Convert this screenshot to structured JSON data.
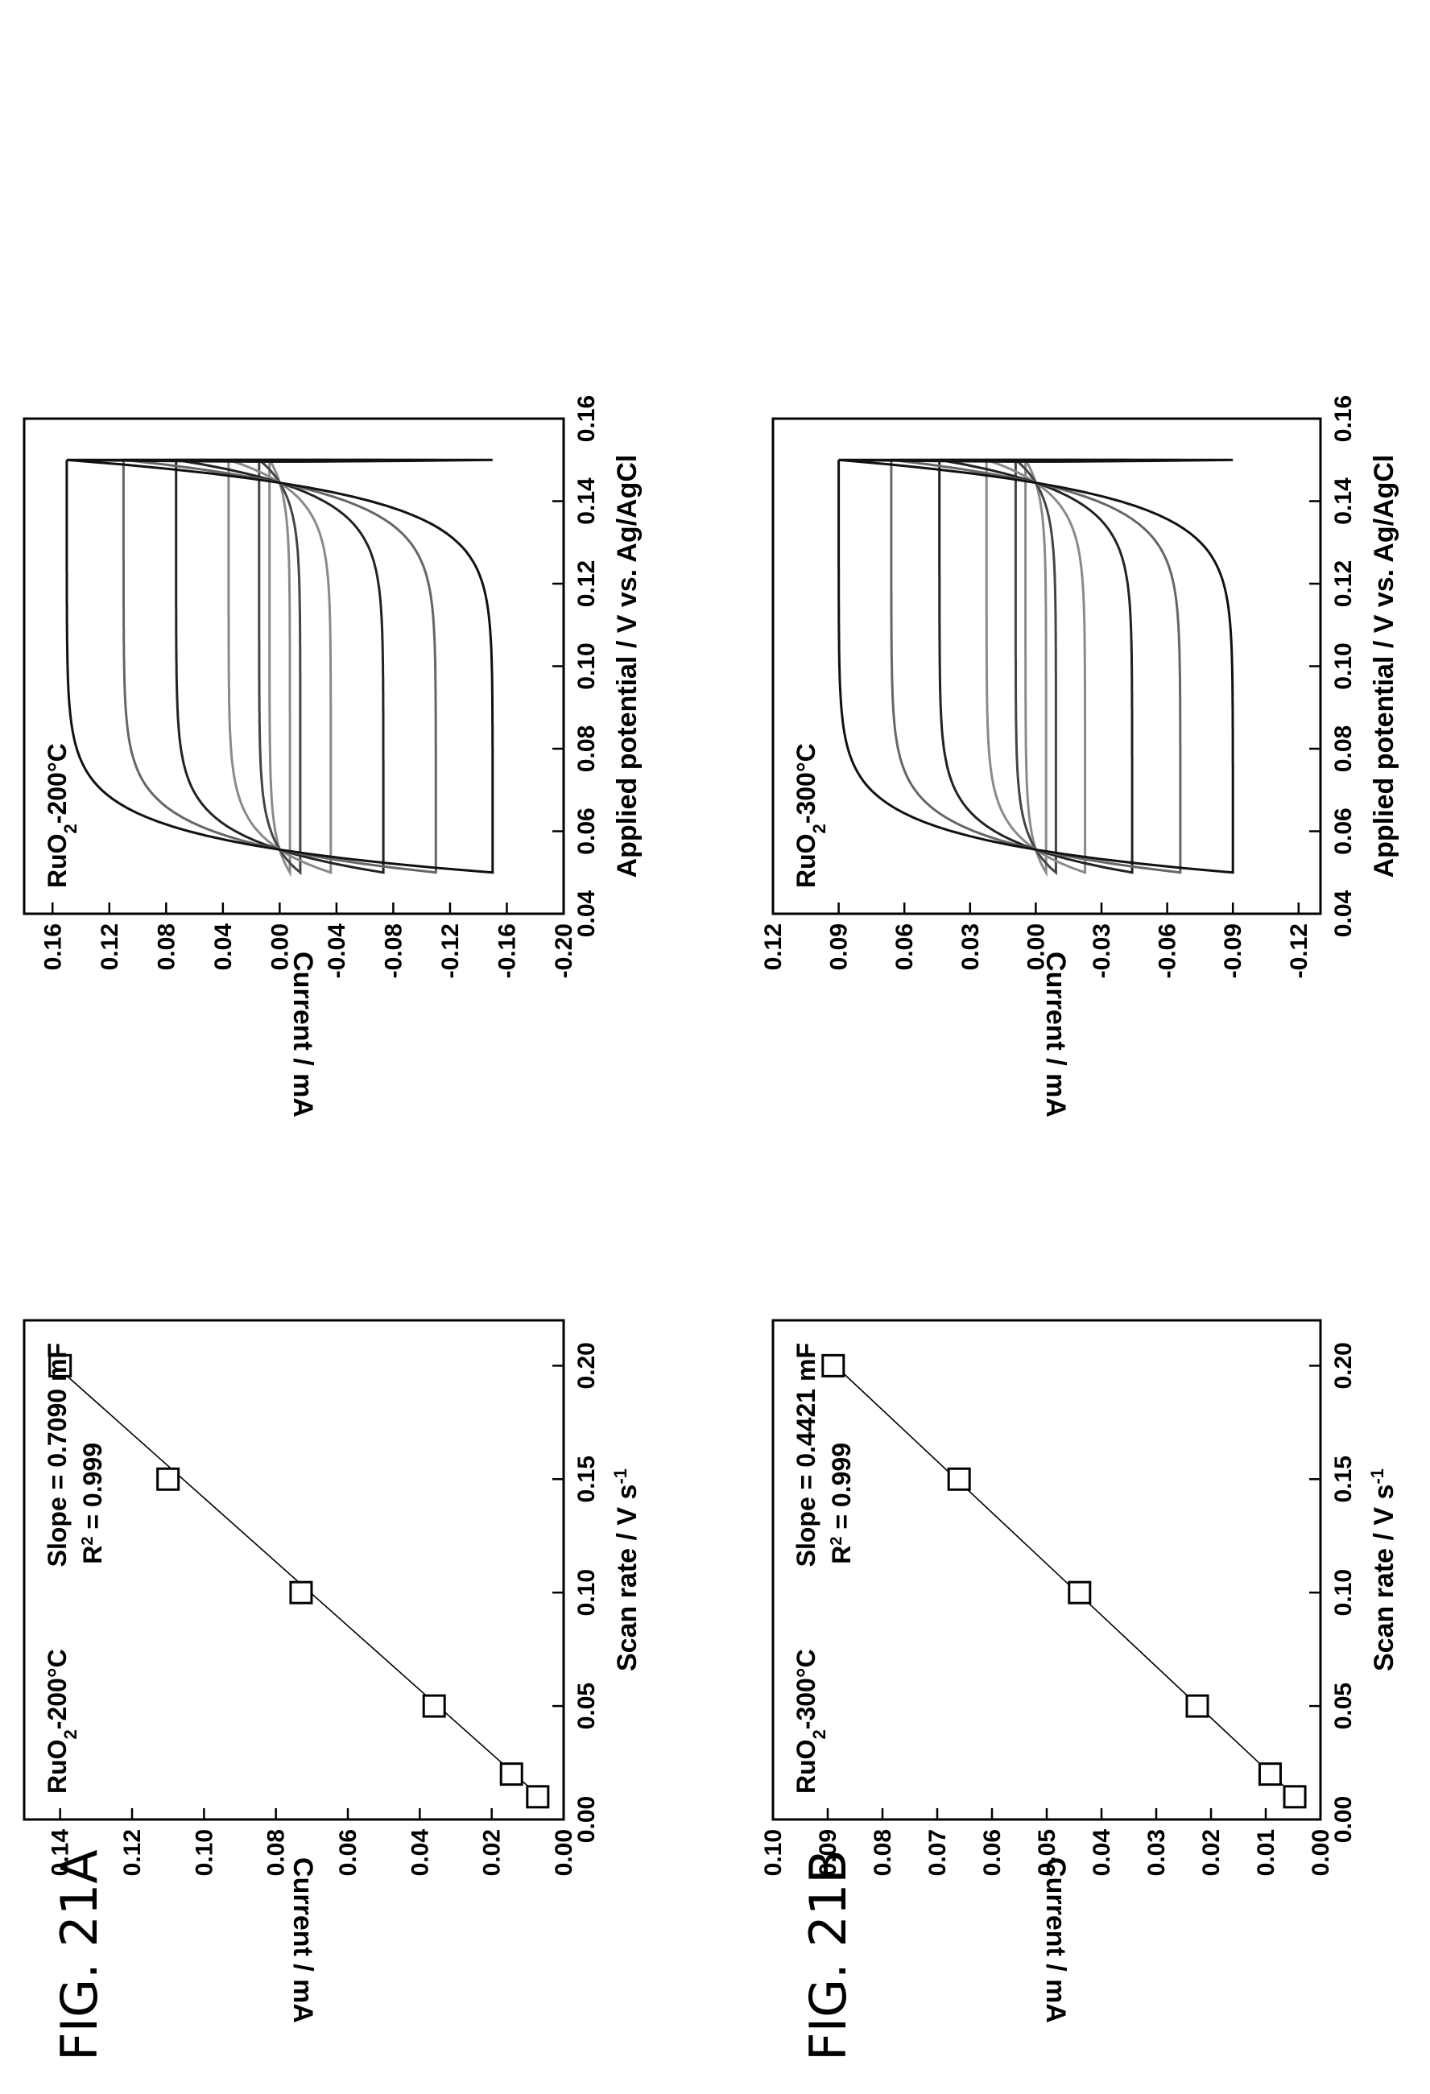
{
  "figures": [
    {
      "id": "21A",
      "label": "FIG. 21A"
    },
    {
      "id": "21B",
      "label": "FIG. 21B"
    }
  ],
  "chart_data": [
    {
      "id": "cv-21a",
      "figure": "21A",
      "type": "line",
      "title": "",
      "xlabel": "Applied potential / V vs. Ag/AgCl",
      "ylabel": "Current / mA",
      "xlim": [
        0.04,
        0.16
      ],
      "ylim": [
        -0.2,
        0.18
      ],
      "xticks": [
        "0.04",
        "0.06",
        "0.08",
        "0.10",
        "0.12",
        "0.14",
        "0.16"
      ],
      "yticks": [
        "0.16",
        "0.12",
        "0.08",
        "0.04",
        "0.00",
        "-0.04",
        "-0.08",
        "-0.12",
        "-0.16",
        "-0.20"
      ],
      "grid": false,
      "annotation": {
        "base": "RuO",
        "sub": "2",
        "rest": "-200°C"
      },
      "curve_shape": {
        "x_start": 0.05,
        "x_end": 0.15
      },
      "series": [
        {
          "scan_rate": 0.01,
          "amplitude": 0.0072,
          "color": "#8a8a8a"
        },
        {
          "scan_rate": 0.02,
          "amplitude": 0.0145,
          "color": "#444444"
        },
        {
          "scan_rate": 0.05,
          "amplitude": 0.036,
          "color": "#8a8a8a"
        },
        {
          "scan_rate": 0.1,
          "amplitude": 0.073,
          "color": "#222222"
        },
        {
          "scan_rate": 0.15,
          "amplitude": 0.11,
          "color": "#666666"
        },
        {
          "scan_rate": 0.2,
          "amplitude": 0.15,
          "color": "#111111"
        }
      ]
    },
    {
      "id": "linear-21a",
      "figure": "21A",
      "type": "scatter",
      "title": "",
      "xlabel": "Scan rate / V s",
      "xlabel_sup": "-1",
      "ylabel": "Current / mA",
      "xlim": [
        0.0,
        0.22
      ],
      "ylim": [
        0.0,
        0.15
      ],
      "xticks": [
        "0.00",
        "0.05",
        "0.10",
        "0.15",
        "0.20"
      ],
      "yticks": [
        "0.00",
        "0.02",
        "0.04",
        "0.06",
        "0.08",
        "0.10",
        "0.12",
        "0.14"
      ],
      "grid": false,
      "annotation": {
        "base": "RuO",
        "sub": "2",
        "rest": "-200°C"
      },
      "slope_text": "Slope = 0.7090 mF",
      "r2": {
        "base": "R",
        "sup": "2",
        "rest": " = 0.999"
      },
      "points": [
        {
          "x": 0.01,
          "y": 0.0072
        },
        {
          "x": 0.02,
          "y": 0.0145
        },
        {
          "x": 0.05,
          "y": 0.036
        },
        {
          "x": 0.1,
          "y": 0.073
        },
        {
          "x": 0.15,
          "y": 0.11
        },
        {
          "x": 0.2,
          "y": 0.14
        }
      ],
      "fit": {
        "slope": 0.709,
        "intercept": -0.0005,
        "x_range": [
          0.008,
          0.2
        ]
      }
    },
    {
      "id": "cv-21b",
      "figure": "21B",
      "type": "line",
      "title": "",
      "xlabel": "Applied potential / V vs. Ag/AgCl",
      "ylabel": "Current / mA",
      "xlim": [
        0.04,
        0.16
      ],
      "ylim": [
        -0.13,
        0.12
      ],
      "xticks": [
        "0.04",
        "0.06",
        "0.08",
        "0.10",
        "0.12",
        "0.14",
        "0.16"
      ],
      "yticks": [
        "0.12",
        "0.09",
        "0.06",
        "0.03",
        "0.00",
        "-0.03",
        "-0.06",
        "-0.09",
        "-0.12"
      ],
      "grid": false,
      "annotation": {
        "base": "RuO",
        "sub": "2",
        "rest": "-300°C"
      },
      "curve_shape": {
        "x_start": 0.05,
        "x_end": 0.15
      },
      "series": [
        {
          "scan_rate": 0.01,
          "amplitude": 0.0047,
          "color": "#8a8a8a"
        },
        {
          "scan_rate": 0.02,
          "amplitude": 0.0092,
          "color": "#444444"
        },
        {
          "scan_rate": 0.05,
          "amplitude": 0.0225,
          "color": "#8a8a8a"
        },
        {
          "scan_rate": 0.1,
          "amplitude": 0.044,
          "color": "#222222"
        },
        {
          "scan_rate": 0.15,
          "amplitude": 0.066,
          "color": "#666666"
        },
        {
          "scan_rate": 0.2,
          "amplitude": 0.09,
          "color": "#111111"
        }
      ]
    },
    {
      "id": "linear-21b",
      "figure": "21B",
      "type": "scatter",
      "title": "",
      "xlabel": "Scan rate / V s",
      "xlabel_sup": "-1",
      "ylabel": "Current / mA",
      "xlim": [
        0.0,
        0.22
      ],
      "ylim": [
        0.0,
        0.1
      ],
      "xticks": [
        "0.00",
        "0.05",
        "0.10",
        "0.15",
        "0.20"
      ],
      "yticks": [
        "0.00",
        "0.01",
        "0.02",
        "0.03",
        "0.04",
        "0.05",
        "0.06",
        "0.07",
        "0.08",
        "0.09",
        "0.10"
      ],
      "grid": false,
      "annotation": {
        "base": "RuO",
        "sub": "2",
        "rest": "-300°C"
      },
      "slope_text": "Slope = 0.4421 mF",
      "r2": {
        "base": "R",
        "sup": "2",
        "rest": " = 0.999"
      },
      "points": [
        {
          "x": 0.01,
          "y": 0.0047
        },
        {
          "x": 0.02,
          "y": 0.0092
        },
        {
          "x": 0.05,
          "y": 0.0225
        },
        {
          "x": 0.1,
          "y": 0.044
        },
        {
          "x": 0.15,
          "y": 0.066
        },
        {
          "x": 0.2,
          "y": 0.089
        }
      ],
      "fit": {
        "slope": 0.4421,
        "intercept": 0.0002,
        "x_range": [
          0.008,
          0.2
        ]
      }
    }
  ]
}
